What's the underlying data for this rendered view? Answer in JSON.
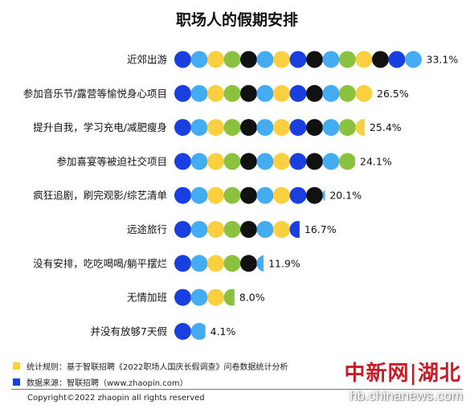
{
  "colors": {
    "blue": "#1a3fe0",
    "light_blue": "#44adf2",
    "yellow": "#fbd040",
    "green": "#8ac23f",
    "black": "#111111",
    "note_yellow": "#f9cf45",
    "note_blue": "#1a3fe0"
  },
  "chart_data": {
    "type": "bar",
    "title": "职场人的假期安排",
    "unit": "%",
    "categories": [
      "近郊出游",
      "参加音乐节/露营等愉悦身心项目",
      "提升自我，学习充电/减肥瘦身",
      "参加喜宴等被迫社交项目",
      "疯狂追剧，刷完观影/综艺清单",
      "远途旅行",
      "没有安排，吃吃喝喝/躺平摆烂",
      "无情加班",
      "并没有放够7天假"
    ],
    "values": [
      33.1,
      26.5,
      25.4,
      24.1,
      20.1,
      16.7,
      11.9,
      8.0,
      4.1
    ],
    "value_labels": [
      "33.1%",
      "26.5%",
      "25.4%",
      "24.1%",
      "20.1%",
      "16.7%",
      "11.9%",
      "8.0%",
      "4.1%"
    ],
    "circle_color_cycle": [
      "blue",
      "light_blue",
      "yellow",
      "green",
      "black",
      "light_blue",
      "yellow",
      "blue",
      "black",
      "light_blue",
      "green",
      "yellow",
      "black",
      "blue",
      "light_blue",
      "yellow"
    ]
  },
  "notes": [
    {
      "icon": "yellow-square-icon",
      "color": "#f9cf45",
      "text": "统计规则：基于智联招聘《2022职场人国庆长假调查》问卷数据统计分析"
    },
    {
      "icon": "blue-square-icon",
      "color": "#1a3fe0",
      "text": "数据来源：智联招聘（www.zhaopin.com）"
    }
  ],
  "copyright": "Copyright©2022 zhaopin all rights reserved",
  "watermark": {
    "logo": "中新网|湖北",
    "site": "hb.chinanews.com"
  }
}
